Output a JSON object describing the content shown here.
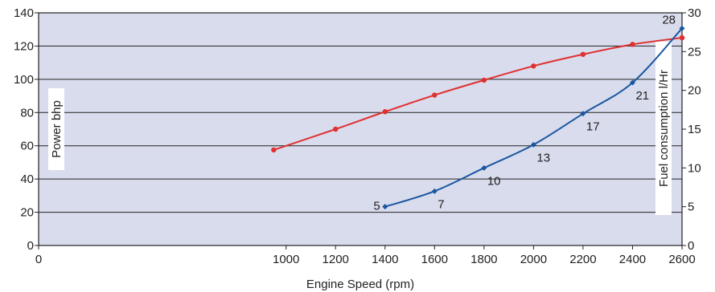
{
  "chart_data": {
    "type": "line",
    "xlabel": "Engine Speed (rpm)",
    "ylabel": "Power bhp",
    "y2label": "Fuel consumption l/Hr",
    "xlim": [
      0,
      2600
    ],
    "ylim": [
      0,
      140
    ],
    "y2lim": [
      0,
      30
    ],
    "x_ticks": [
      0,
      1000,
      1200,
      1400,
      1600,
      1800,
      2000,
      2200,
      2400,
      2600
    ],
    "y_ticks": [
      0,
      20,
      40,
      60,
      80,
      100,
      120,
      140
    ],
    "y2_ticks": [
      0,
      5,
      10,
      15,
      20,
      25,
      30
    ],
    "grid": true,
    "colors": {
      "plot_background": "#d9dced",
      "power": "#e03030",
      "fuel": "#1a56a0",
      "grid": "#222222"
    },
    "series": [
      {
        "key": "power",
        "axis": "left",
        "x": [
          950,
          1200,
          1400,
          1600,
          1800,
          2000,
          2200,
          2400,
          2600
        ],
        "values": [
          57.5,
          70,
          80.5,
          90.5,
          99.5,
          108,
          115,
          121,
          125
        ]
      },
      {
        "key": "fuel",
        "axis": "right",
        "x": [
          1400,
          1600,
          1800,
          2000,
          2200,
          2400,
          2600
        ],
        "values": [
          5,
          7,
          10,
          13,
          17,
          21,
          28
        ],
        "labels": [
          "5",
          "7",
          "10",
          "13",
          "17",
          "21",
          "28"
        ]
      }
    ]
  }
}
